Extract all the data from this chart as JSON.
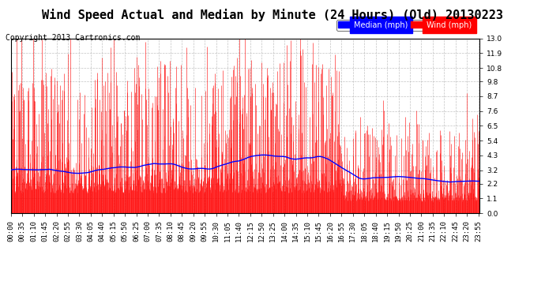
{
  "title": "Wind Speed Actual and Median by Minute (24 Hours) (Old) 20130223",
  "copyright": "Copyright 2013 Cartronics.com",
  "yticks": [
    0.0,
    1.1,
    2.2,
    3.2,
    4.3,
    5.4,
    6.5,
    7.6,
    8.7,
    9.8,
    10.8,
    11.9,
    13.0
  ],
  "ymin": 0.0,
  "ymax": 13.0,
  "legend_median_label": "Median (mph)",
  "legend_wind_label": "Wind (mph)",
  "median_color": "#0000ff",
  "wind_color": "#ff0000",
  "background_color": "#ffffff",
  "plot_bg_color": "#ffffff",
  "grid_color": "#aaaaaa",
  "title_fontsize": 11,
  "copyright_fontsize": 7,
  "tick_fontsize": 6.5,
  "num_minutes": 1440,
  "xtick_interval": 35
}
